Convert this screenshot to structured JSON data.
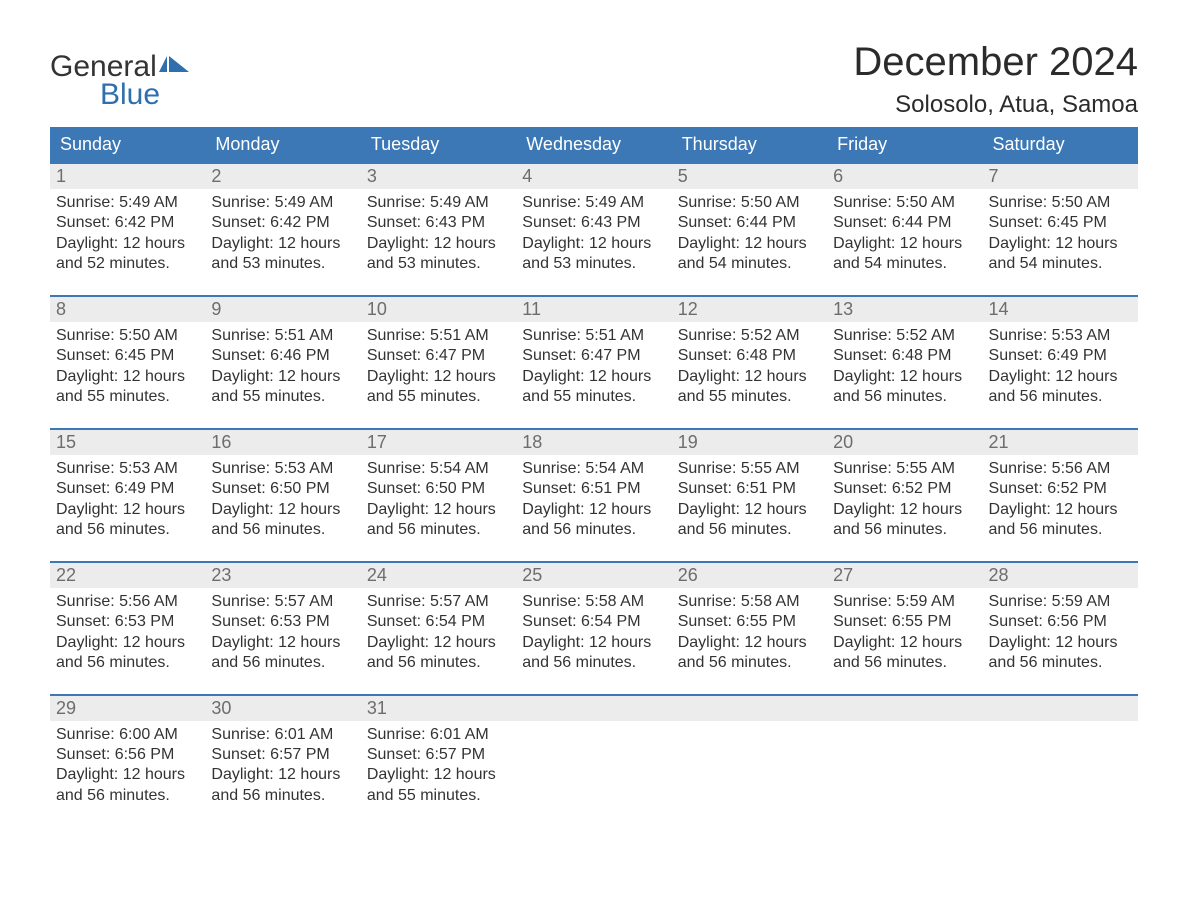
{
  "logo": {
    "text_general": "General",
    "text_blue": "Blue",
    "flag_color": "#2f6fad"
  },
  "title": "December 2024",
  "location": "Solosolo, Atua, Samoa",
  "colors": {
    "header_bg": "#3b78b5",
    "header_text": "#ffffff",
    "daynum_bg": "#ececec",
    "daynum_text": "#6d6d6d",
    "body_text": "#333333",
    "rule": "#3b78b5"
  },
  "day_names": [
    "Sunday",
    "Monday",
    "Tuesday",
    "Wednesday",
    "Thursday",
    "Friday",
    "Saturday"
  ],
  "weeks": [
    [
      {
        "n": "1",
        "sr": "Sunrise: 5:49 AM",
        "ss": "Sunset: 6:42 PM",
        "d1": "Daylight: 12 hours",
        "d2": "and 52 minutes."
      },
      {
        "n": "2",
        "sr": "Sunrise: 5:49 AM",
        "ss": "Sunset: 6:42 PM",
        "d1": "Daylight: 12 hours",
        "d2": "and 53 minutes."
      },
      {
        "n": "3",
        "sr": "Sunrise: 5:49 AM",
        "ss": "Sunset: 6:43 PM",
        "d1": "Daylight: 12 hours",
        "d2": "and 53 minutes."
      },
      {
        "n": "4",
        "sr": "Sunrise: 5:49 AM",
        "ss": "Sunset: 6:43 PM",
        "d1": "Daylight: 12 hours",
        "d2": "and 53 minutes."
      },
      {
        "n": "5",
        "sr": "Sunrise: 5:50 AM",
        "ss": "Sunset: 6:44 PM",
        "d1": "Daylight: 12 hours",
        "d2": "and 54 minutes."
      },
      {
        "n": "6",
        "sr": "Sunrise: 5:50 AM",
        "ss": "Sunset: 6:44 PM",
        "d1": "Daylight: 12 hours",
        "d2": "and 54 minutes."
      },
      {
        "n": "7",
        "sr": "Sunrise: 5:50 AM",
        "ss": "Sunset: 6:45 PM",
        "d1": "Daylight: 12 hours",
        "d2": "and 54 minutes."
      }
    ],
    [
      {
        "n": "8",
        "sr": "Sunrise: 5:50 AM",
        "ss": "Sunset: 6:45 PM",
        "d1": "Daylight: 12 hours",
        "d2": "and 55 minutes."
      },
      {
        "n": "9",
        "sr": "Sunrise: 5:51 AM",
        "ss": "Sunset: 6:46 PM",
        "d1": "Daylight: 12 hours",
        "d2": "and 55 minutes."
      },
      {
        "n": "10",
        "sr": "Sunrise: 5:51 AM",
        "ss": "Sunset: 6:47 PM",
        "d1": "Daylight: 12 hours",
        "d2": "and 55 minutes."
      },
      {
        "n": "11",
        "sr": "Sunrise: 5:51 AM",
        "ss": "Sunset: 6:47 PM",
        "d1": "Daylight: 12 hours",
        "d2": "and 55 minutes."
      },
      {
        "n": "12",
        "sr": "Sunrise: 5:52 AM",
        "ss": "Sunset: 6:48 PM",
        "d1": "Daylight: 12 hours",
        "d2": "and 55 minutes."
      },
      {
        "n": "13",
        "sr": "Sunrise: 5:52 AM",
        "ss": "Sunset: 6:48 PM",
        "d1": "Daylight: 12 hours",
        "d2": "and 56 minutes."
      },
      {
        "n": "14",
        "sr": "Sunrise: 5:53 AM",
        "ss": "Sunset: 6:49 PM",
        "d1": "Daylight: 12 hours",
        "d2": "and 56 minutes."
      }
    ],
    [
      {
        "n": "15",
        "sr": "Sunrise: 5:53 AM",
        "ss": "Sunset: 6:49 PM",
        "d1": "Daylight: 12 hours",
        "d2": "and 56 minutes."
      },
      {
        "n": "16",
        "sr": "Sunrise: 5:53 AM",
        "ss": "Sunset: 6:50 PM",
        "d1": "Daylight: 12 hours",
        "d2": "and 56 minutes."
      },
      {
        "n": "17",
        "sr": "Sunrise: 5:54 AM",
        "ss": "Sunset: 6:50 PM",
        "d1": "Daylight: 12 hours",
        "d2": "and 56 minutes."
      },
      {
        "n": "18",
        "sr": "Sunrise: 5:54 AM",
        "ss": "Sunset: 6:51 PM",
        "d1": "Daylight: 12 hours",
        "d2": "and 56 minutes."
      },
      {
        "n": "19",
        "sr": "Sunrise: 5:55 AM",
        "ss": "Sunset: 6:51 PM",
        "d1": "Daylight: 12 hours",
        "d2": "and 56 minutes."
      },
      {
        "n": "20",
        "sr": "Sunrise: 5:55 AM",
        "ss": "Sunset: 6:52 PM",
        "d1": "Daylight: 12 hours",
        "d2": "and 56 minutes."
      },
      {
        "n": "21",
        "sr": "Sunrise: 5:56 AM",
        "ss": "Sunset: 6:52 PM",
        "d1": "Daylight: 12 hours",
        "d2": "and 56 minutes."
      }
    ],
    [
      {
        "n": "22",
        "sr": "Sunrise: 5:56 AM",
        "ss": "Sunset: 6:53 PM",
        "d1": "Daylight: 12 hours",
        "d2": "and 56 minutes."
      },
      {
        "n": "23",
        "sr": "Sunrise: 5:57 AM",
        "ss": "Sunset: 6:53 PM",
        "d1": "Daylight: 12 hours",
        "d2": "and 56 minutes."
      },
      {
        "n": "24",
        "sr": "Sunrise: 5:57 AM",
        "ss": "Sunset: 6:54 PM",
        "d1": "Daylight: 12 hours",
        "d2": "and 56 minutes."
      },
      {
        "n": "25",
        "sr": "Sunrise: 5:58 AM",
        "ss": "Sunset: 6:54 PM",
        "d1": "Daylight: 12 hours",
        "d2": "and 56 minutes."
      },
      {
        "n": "26",
        "sr": "Sunrise: 5:58 AM",
        "ss": "Sunset: 6:55 PM",
        "d1": "Daylight: 12 hours",
        "d2": "and 56 minutes."
      },
      {
        "n": "27",
        "sr": "Sunrise: 5:59 AM",
        "ss": "Sunset: 6:55 PM",
        "d1": "Daylight: 12 hours",
        "d2": "and 56 minutes."
      },
      {
        "n": "28",
        "sr": "Sunrise: 5:59 AM",
        "ss": "Sunset: 6:56 PM",
        "d1": "Daylight: 12 hours",
        "d2": "and 56 minutes."
      }
    ],
    [
      {
        "n": "29",
        "sr": "Sunrise: 6:00 AM",
        "ss": "Sunset: 6:56 PM",
        "d1": "Daylight: 12 hours",
        "d2": "and 56 minutes."
      },
      {
        "n": "30",
        "sr": "Sunrise: 6:01 AM",
        "ss": "Sunset: 6:57 PM",
        "d1": "Daylight: 12 hours",
        "d2": "and 56 minutes."
      },
      {
        "n": "31",
        "sr": "Sunrise: 6:01 AM",
        "ss": "Sunset: 6:57 PM",
        "d1": "Daylight: 12 hours",
        "d2": "and 55 minutes."
      },
      {
        "empty": true
      },
      {
        "empty": true
      },
      {
        "empty": true
      },
      {
        "empty": true
      }
    ]
  ]
}
